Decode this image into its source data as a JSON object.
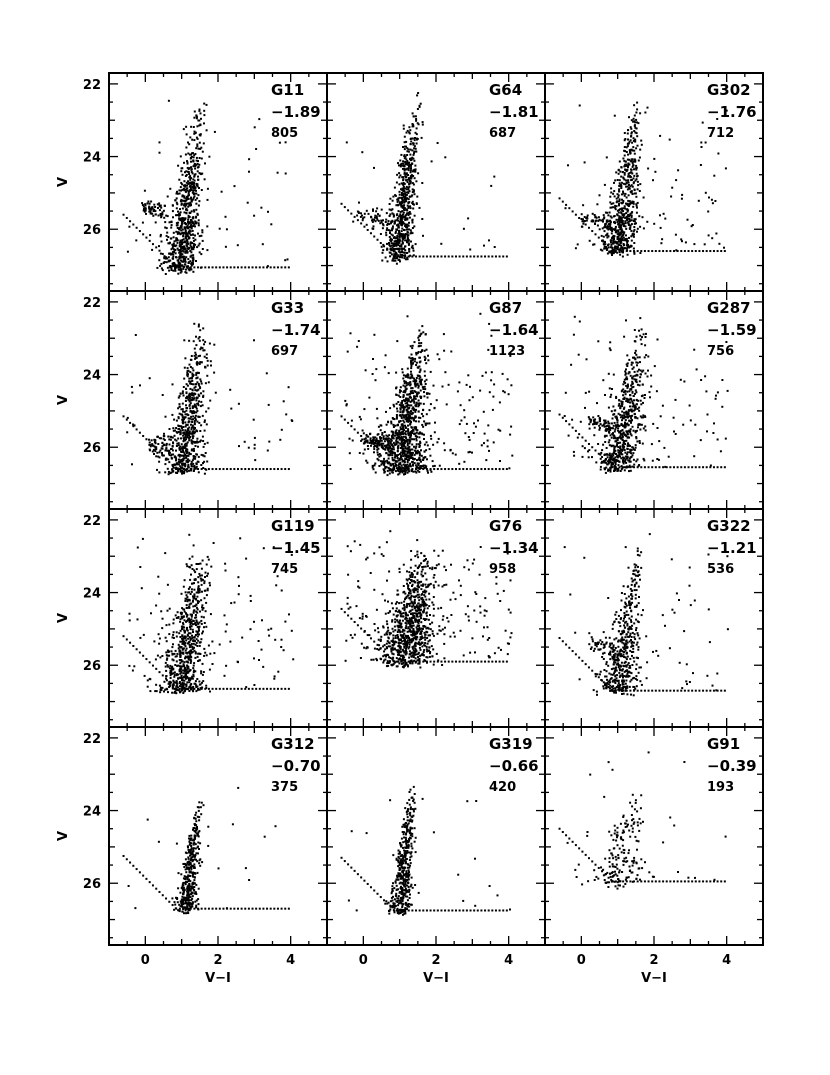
{
  "chart_data": {
    "type": "scatter",
    "layout": {
      "rows": 4,
      "cols": 3
    },
    "xlabel": "V−I",
    "ylabel": "V",
    "xlim": [
      -1,
      5
    ],
    "ylim": [
      27.7,
      21.7
    ],
    "y_inverted": true,
    "xticks": [
      0,
      2,
      4
    ],
    "yticks": [
      22,
      24,
      26
    ],
    "x_tick_labels": [
      "0",
      "2",
      "4"
    ],
    "y_tick_labels": [
      "22",
      "24",
      "26"
    ],
    "marker_color": "#000000",
    "panels": [
      {
        "name": "G11",
        "metallicity": "−1.89",
        "count": "805",
        "n": 805,
        "limit_V": 27.05,
        "bright_tip": [
          1.55,
          22.3
        ],
        "rgb_slope": 0.13,
        "hb": true,
        "hb_V": 25.4,
        "hb_x": [
          -0.1,
          0.6
        ],
        "scatter": 0.25,
        "field": 0.06
      },
      {
        "name": "G64",
        "metallicity": "−1.81",
        "count": "687",
        "n": 687,
        "limit_V": 26.75,
        "bright_tip": [
          1.5,
          22.2
        ],
        "rgb_slope": 0.12,
        "hb": true,
        "hb_V": 25.6,
        "hb_x": [
          -0.3,
          0.8
        ],
        "scatter": 0.22,
        "field": 0.04
      },
      {
        "name": "G302",
        "metallicity": "−1.76",
        "count": "712",
        "n": 712,
        "limit_V": 26.6,
        "bright_tip": [
          1.6,
          22.3
        ],
        "rgb_slope": 0.14,
        "hb": true,
        "hb_V": 25.7,
        "hb_x": [
          0.0,
          0.8
        ],
        "scatter": 0.25,
        "field": 0.12
      },
      {
        "name": "G33",
        "metallicity": "−1.74",
        "count": "697",
        "n": 697,
        "limit_V": 26.6,
        "bright_tip": [
          1.6,
          22.4
        ],
        "rgb_slope": 0.14,
        "hb": true,
        "hb_V": 25.9,
        "hb_x": [
          0.1,
          0.8
        ],
        "scatter": 0.28,
        "field": 0.08
      },
      {
        "name": "G87",
        "metallicity": "−1.64",
        "count": "1123",
        "n": 1123,
        "limit_V": 26.6,
        "bright_tip": [
          1.65,
          22.6
        ],
        "rgb_slope": 0.16,
        "hb": true,
        "hb_V": 25.8,
        "hb_x": [
          0.0,
          0.8
        ],
        "scatter": 0.35,
        "field": 0.14
      },
      {
        "name": "G287",
        "metallicity": "−1.59",
        "count": "756",
        "n": 756,
        "limit_V": 26.55,
        "bright_tip": [
          1.7,
          22.6
        ],
        "rgb_slope": 0.18,
        "hb": true,
        "hb_V": 25.3,
        "hb_x": [
          0.2,
          0.8
        ],
        "scatter": 0.3,
        "field": 0.15
      },
      {
        "name": "G119",
        "metallicity": "−1.45",
        "count": "745",
        "n": 745,
        "limit_V": 26.65,
        "bright_tip": [
          1.55,
          22.7
        ],
        "rgb_slope": 0.15,
        "hb": false,
        "hb_V": 26.0,
        "hb_x": [
          0.0,
          0.8
        ],
        "scatter": 0.35,
        "field": 0.15
      },
      {
        "name": "G76",
        "metallicity": "−1.34",
        "count": "958",
        "n": 958,
        "limit_V": 25.9,
        "bright_tip": [
          1.7,
          22.6
        ],
        "rgb_slope": 0.17,
        "hb": false,
        "hb_V": 25.5,
        "hb_x": [
          0.0,
          0.8
        ],
        "scatter": 0.4,
        "field": 0.2
      },
      {
        "name": "G322",
        "metallicity": "−1.21",
        "count": "536",
        "n": 536,
        "limit_V": 26.7,
        "bright_tip": [
          1.6,
          22.5
        ],
        "rgb_slope": 0.14,
        "hb": true,
        "hb_V": 25.4,
        "hb_x": [
          0.2,
          0.9
        ],
        "scatter": 0.28,
        "field": 0.1
      },
      {
        "name": "G312",
        "metallicity": "−0.70",
        "count": "375",
        "n": 375,
        "limit_V": 26.7,
        "bright_tip": [
          1.5,
          23.5
        ],
        "rgb_slope": 0.12,
        "hb": false,
        "hb_V": 26.0,
        "hb_x": [
          0.0,
          0.8
        ],
        "scatter": 0.15,
        "field": 0.06
      },
      {
        "name": "G319",
        "metallicity": "−0.66",
        "count": "420",
        "n": 420,
        "limit_V": 26.75,
        "bright_tip": [
          1.4,
          23.0
        ],
        "rgb_slope": 0.11,
        "hb": false,
        "hb_V": 26.0,
        "hb_x": [
          0.0,
          0.8
        ],
        "scatter": 0.15,
        "field": 0.05
      },
      {
        "name": "G91",
        "metallicity": "−0.39",
        "count": "193",
        "n": 193,
        "limit_V": 25.95,
        "bright_tip": [
          1.6,
          23.3
        ],
        "rgb_slope": 0.25,
        "hb": false,
        "hb_V": 26.0,
        "hb_x": [
          0.0,
          0.8
        ],
        "scatter": 0.35,
        "field": 0.12
      }
    ]
  }
}
